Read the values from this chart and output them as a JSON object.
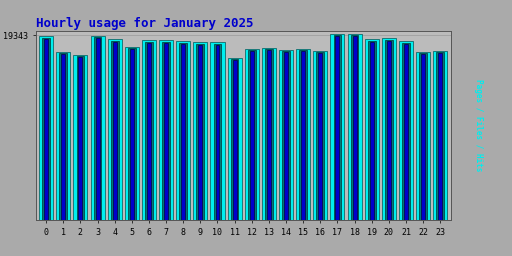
{
  "title": "Hourly usage for January 2025",
  "title_color": "#0000cc",
  "title_fontsize": 9,
  "background_color": "#aaaaaa",
  "plot_bg_color": "#bbbbbb",
  "hours": [
    0,
    1,
    2,
    3,
    4,
    5,
    6,
    7,
    8,
    9,
    10,
    11,
    12,
    13,
    14,
    15,
    16,
    17,
    18,
    19,
    20,
    21,
    22,
    23
  ],
  "hits": [
    19200,
    17600,
    17300,
    19300,
    18900,
    18100,
    18800,
    18800,
    18700,
    18600,
    18600,
    17000,
    17900,
    18000,
    17800,
    17900,
    17700,
    19500,
    19500,
    18900,
    19000,
    18700,
    17600,
    17700
  ],
  "files": [
    19050,
    17450,
    17150,
    19150,
    18750,
    17950,
    18650,
    18650,
    18550,
    18450,
    18450,
    16850,
    17750,
    17850,
    17650,
    17750,
    17550,
    19350,
    19350,
    18750,
    18850,
    18550,
    17450,
    17550
  ],
  "pages": [
    18950,
    17350,
    17050,
    19050,
    18650,
    17850,
    18550,
    18550,
    18450,
    18350,
    18350,
    16750,
    17650,
    17750,
    17550,
    17650,
    17450,
    19250,
    19250,
    18650,
    18750,
    18450,
    17350,
    17450
  ],
  "hits_color": "#00eeee",
  "files_color": "#007777",
  "pages_color": "#0000cc",
  "ymin": 0,
  "ymax": 19800,
  "ytick_val": 19343,
  "grid_color": "#999999",
  "border_color": "#000000",
  "ylabel_text": "Pages / Files / Hits",
  "ylabel_color_pages": "#0000cc",
  "ylabel_color_files": "#007777",
  "ylabel_color_hits": "#00eeee"
}
